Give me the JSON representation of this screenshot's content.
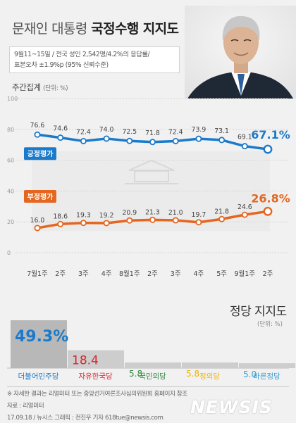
{
  "header": {
    "title_light": "문재인 대통령",
    "title_bold": "국정수행 지지도",
    "survey_line1": "9월11~15일 / 전국 성인 2,542명/4.2%의 응답률/",
    "survey_line2": "표본오차 ±1.9%p (95% 신뢰수준)"
  },
  "weekly": {
    "label": "주간집계",
    "unit": "(단위: %)"
  },
  "chart_data": [
    {
      "type": "line",
      "title": "주간집계",
      "x": [
        "7월1주",
        "2주",
        "3주",
        "4주",
        "8월1주",
        "2주",
        "3주",
        "4주",
        "5주",
        "9월1주",
        "2주"
      ],
      "ylim": [
        0,
        100
      ],
      "yticks": [
        "0",
        "20",
        "40",
        "60",
        "80",
        "100"
      ],
      "series": [
        {
          "name": "긍정평가",
          "values": [
            76.6,
            74.6,
            72.4,
            74.0,
            72.5,
            71.8,
            72.4,
            73.9,
            73.1,
            69.1,
            67.1
          ],
          "labels": [
            "76.6",
            "74.6",
            "72.4",
            "74.0",
            "72.5",
            "71.8",
            "72.4",
            "73.9",
            "73.1",
            "69.1",
            "67.1%"
          ],
          "color": "#1b7ac9"
        },
        {
          "name": "부정평가",
          "values": [
            16.0,
            18.6,
            19.3,
            19.2,
            20.9,
            21.3,
            21.0,
            19.7,
            21.8,
            24.6,
            26.8
          ],
          "labels": [
            "16.0",
            "18.6",
            "19.3",
            "19.2",
            "20.9",
            "21.3",
            "21.0",
            "19.7",
            "21.8",
            "24.6",
            "26.8%"
          ],
          "color": "#e4661f"
        }
      ]
    },
    {
      "type": "bar",
      "title": "정당 지지도",
      "unit": "(단위: %)",
      "categories": [
        "더불어민주당",
        "자유한국당",
        "국민의당",
        "정의당",
        "바른정당"
      ],
      "values": [
        49.3,
        18.4,
        5.8,
        5.8,
        5.0
      ],
      "value_labels": [
        "49.3%",
        "18.4",
        "5.8",
        "5.8",
        "5.0"
      ],
      "colors": [
        "#1b7ac9",
        "#d7262e",
        "#2e8b3d",
        "#f0b400",
        "#3a9fd6"
      ]
    }
  ],
  "party": {
    "title": "정당 지지도",
    "unit": "(단위: %)"
  },
  "footer": {
    "note1": "※ 자세한 결과는 리얼미터 또는 중앙선거여론조사심의위원회 홈페이지 참조",
    "source": "자료 : 리얼미터",
    "credit": "17.09.18 / 뉴시스 그래픽 : 전진우 기자 618tue@newsis.com"
  },
  "watermark": "NEWSIS",
  "icons": {
    "portrait": "president-portrait",
    "seal": "cheongwadae-seal"
  }
}
